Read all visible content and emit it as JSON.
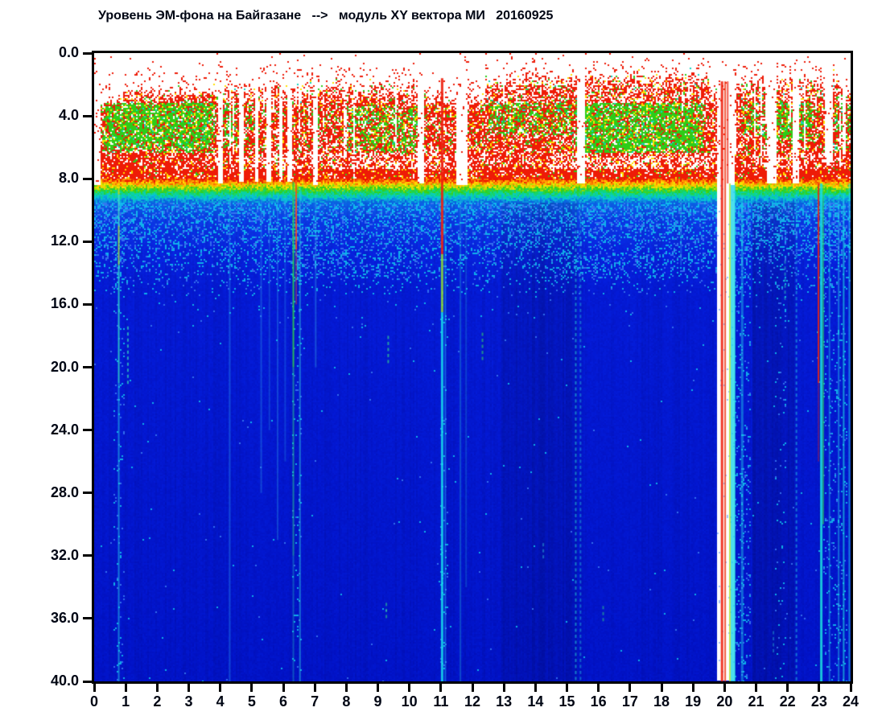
{
  "title": "Уровень ЭМ-фона на Байгазане   -->   модуль XY вектора МИ   20160925",
  "chart_data": {
    "type": "heatmap",
    "subtype": "spectrogram",
    "title": "Уровень ЭМ-фона на Байгазане --> модуль XY вектора МИ 20160925",
    "station": "Байгазане",
    "quantity": "модуль XY вектора МИ",
    "date": "20160925",
    "xlim": [
      0,
      24
    ],
    "ylim": [
      0,
      40
    ],
    "y_inverted": true,
    "grid": false,
    "legend": "none",
    "x_ticks": [
      "0",
      "1",
      "2",
      "3",
      "4",
      "5",
      "6",
      "7",
      "8",
      "9",
      "10",
      "11",
      "12",
      "13",
      "14",
      "15",
      "16",
      "17",
      "18",
      "19",
      "20",
      "21",
      "22",
      "23",
      "24"
    ],
    "y_ticks": [
      "0.0",
      "4.0",
      "8.0",
      "12.0",
      "16.0",
      "20.0",
      "24.0",
      "28.0",
      "32.0",
      "36.0",
      "40.0"
    ],
    "colormap": "jet (blue=low, cyan, green, yellow, red=high)",
    "intensity_bands_by_depth": [
      {
        "range": [
          0,
          2
        ],
        "level": "background/white with sparse high-intensity dots"
      },
      {
        "range": [
          2,
          8
        ],
        "level": "high (red) with medium (green) patches"
      },
      {
        "range": [
          8,
          9.5
        ],
        "level": "transition red-yellow-green-cyan"
      },
      {
        "range": [
          9.5,
          15.5
        ],
        "level": "low-medium (blue with cyan speckle)"
      },
      {
        "range": [
          15.5,
          40
        ],
        "level": "low (deep blue)"
      }
    ],
    "render": {
      "seed": 1337,
      "palette": {
        "red": "#ee1b07",
        "yellow": "#ffdf00",
        "green": "#2ecc18",
        "cyan": "#16d3c0",
        "white": "#ffffff",
        "speck1": "#12c8ee",
        "speck2": "#3a7bf2",
        "ltblue": "#9fc4ff"
      },
      "ramp_stops": [
        [
          0,
          "#ee1500"
        ],
        [
          0.16,
          "#ff9e00"
        ],
        [
          0.27,
          "#ffe400"
        ],
        [
          0.45,
          "#35d012"
        ],
        [
          0.62,
          "#0cd689"
        ],
        [
          0.78,
          "#08c6d6"
        ],
        [
          0.92,
          "#0a8ee0"
        ],
        [
          1,
          "#0b63de"
        ]
      ],
      "blue_stops": [
        [
          9.55,
          "#0b63de"
        ],
        [
          10.6,
          "#0b3ade"
        ],
        [
          12.6,
          "#0722d6"
        ],
        [
          15,
          "#041acd"
        ],
        [
          40,
          "#0113c0"
        ]
      ],
      "top_edge": [
        [
          0,
          0.9,
          2.6
        ],
        [
          0.9,
          3.9,
          1.9
        ],
        [
          3.9,
          8.2,
          1.6
        ],
        [
          8.2,
          10.5,
          1.85
        ],
        [
          10.5,
          12.4,
          2.35
        ],
        [
          12.4,
          13.2,
          1.4
        ],
        [
          13.2,
          19.5,
          1.05
        ],
        [
          19.5,
          20.35,
          1.9
        ],
        [
          20.35,
          20.9,
          1.6
        ],
        [
          20.9,
          23.3,
          1.3
        ],
        [
          23.3,
          23.7,
          1.15
        ],
        [
          23.7,
          24,
          2.0
        ]
      ],
      "white_band": [
        [
          0,
          3.5,
          0.12
        ],
        [
          3.5,
          4.5,
          0.32
        ],
        [
          4.5,
          9.5,
          0.52
        ],
        [
          9.5,
          12,
          0.42
        ],
        [
          12,
          14.5,
          0.3
        ],
        [
          14.5,
          19.5,
          0.62
        ],
        [
          19.5,
          20.3,
          0.25
        ],
        [
          20.3,
          21.4,
          0.35
        ],
        [
          21.4,
          23.5,
          0.42
        ],
        [
          23.5,
          24,
          0.2
        ]
      ],
      "green_patches": [
        [
          0.25,
          3.85,
          2.9,
          6.35,
          0.85
        ],
        [
          4.05,
          4.55,
          2.6,
          6.0,
          0.6
        ],
        [
          4.78,
          5.12,
          3.2,
          5.6,
          0.35
        ],
        [
          7.9,
          10.4,
          3.4,
          6.35,
          0.45
        ],
        [
          12.5,
          15.25,
          2.2,
          5.2,
          0.5
        ],
        [
          15.25,
          19.35,
          2.1,
          6.55,
          0.9
        ],
        [
          20.55,
          21.15,
          2.4,
          5.2,
          0.45
        ],
        [
          21.2,
          22.85,
          1.9,
          5.6,
          0.68
        ],
        [
          23.45,
          24,
          2.9,
          6.2,
          0.5
        ]
      ],
      "gaps": [
        [
          0,
          0.22,
          0,
          8.4
        ],
        [
          3.95,
          4.1,
          0,
          8.3
        ],
        [
          4.6,
          4.73,
          0,
          8.2
        ],
        [
          5.1,
          5.23,
          0,
          8.2
        ],
        [
          5.48,
          5.6,
          0,
          8.15
        ],
        [
          5.88,
          6.0,
          0,
          8.2
        ],
        [
          6.15,
          6.28,
          0,
          8.2
        ],
        [
          6.92,
          7.08,
          0,
          8.35
        ],
        [
          10.28,
          10.46,
          0,
          8.3
        ],
        [
          11.5,
          11.87,
          0,
          8.35
        ],
        [
          15.3,
          15.56,
          0,
          8.3
        ],
        [
          19.78,
          20.3,
          0,
          40
        ],
        [
          21.35,
          21.66,
          0,
          8.3
        ],
        [
          22.18,
          22.36,
          0,
          8.3
        ],
        [
          23.2,
          23.45,
          0,
          7.0
        ],
        [
          23.72,
          23.85,
          0,
          6.5
        ]
      ],
      "scratch": [
        [
          4.2,
          8.3,
          0.14
        ],
        [
          9.55,
          10.3,
          0.1
        ],
        [
          12.4,
          19.5,
          0.05
        ],
        [
          20.3,
          21.35,
          0.2
        ],
        [
          21.66,
          23.2,
          0.12
        ],
        [
          23.45,
          24,
          0.1
        ]
      ],
      "light_cols": [
        [
          0.6,
          0.95,
          0.25
        ],
        [
          6.3,
          6.6,
          0.25
        ],
        [
          11.0,
          11.25,
          0.3
        ],
        [
          20.3,
          20.85,
          0.5
        ],
        [
          21.6,
          21.95,
          0.2
        ],
        [
          23.15,
          23.55,
          0.4
        ],
        [
          23.55,
          23.9,
          0.3
        ]
      ],
      "dark_cols": [
        [
          12.9,
          15.3,
          0.88
        ],
        [
          20.9,
          22.2,
          0.86
        ]
      ],
      "mid_bump": [
        [
          0,
          1,
          0.06
        ],
        [
          6.4,
          10.3,
          0.1
        ],
        [
          14.6,
          19.3,
          0.12
        ]
      ],
      "events": [
        {
          "h": 0.78,
          "w": 2,
          "s": [
            [
              8.2,
              9,
              "#ffd400",
              0.7,
              0
            ],
            [
              9,
              11,
              "#49e0c8",
              0.75,
              0
            ],
            [
              11,
              13.5,
              "#a8e23c",
              0.8,
              0
            ],
            [
              13.5,
              21,
              "#2fd9c8",
              0.8,
              0
            ],
            [
              21,
              40,
              "#25c8e6",
              0.55,
              0
            ]
          ]
        },
        {
          "h": 1.07,
          "w": 2,
          "s": [
            [
              17.4,
              21,
              "#35e0b8",
              0.7,
              1
            ]
          ]
        },
        {
          "h": 4.3,
          "w": 2,
          "s": [
            [
              9,
              40,
              "#38bdf0",
              0.3,
              0
            ]
          ]
        },
        {
          "h": 5.3,
          "w": 2,
          "s": [
            [
              9,
              28,
              "#38bdf0",
              0.28,
              0
            ]
          ]
        },
        {
          "h": 5.56,
          "w": 2,
          "s": [
            [
              9,
              24,
              "#38bdf0",
              0.22,
              0
            ]
          ]
        },
        {
          "h": 5.82,
          "w": 2,
          "s": [
            [
              9,
              31,
              "#38bdf0",
              0.28,
              0
            ]
          ]
        },
        {
          "h": 6.06,
          "w": 2,
          "s": [
            [
              9,
              26,
              "#38bdf0",
              0.22,
              0
            ]
          ]
        },
        {
          "h": 6.32,
          "w": 2,
          "s": [
            [
              8.2,
              20,
              "#2ecc4e",
              0.88,
              0
            ],
            [
              20,
              32,
              "#29c98e",
              0.55,
              0
            ],
            [
              32,
              40,
              "#27c3c3",
              0.35,
              0
            ]
          ]
        },
        {
          "h": 6.41,
          "w": 2,
          "s": [
            [
              8.2,
              12.5,
              "#ff4a12",
              0.88,
              0
            ],
            [
              12.5,
              16,
              "#ff4a12",
              0.4,
              0
            ]
          ]
        },
        {
          "h": 6.53,
          "w": 2,
          "s": [
            [
              8.5,
              40,
              "#2fc9e2",
              0.5,
              0
            ]
          ]
        },
        {
          "h": 7.03,
          "w": 2,
          "s": [
            [
              9,
              20,
              "#45c9ef",
              0.3,
              0
            ]
          ]
        },
        {
          "h": 9.27,
          "w": 2,
          "s": [
            [
              35.0,
              35.9,
              "#35dd88",
              0.55,
              1
            ]
          ]
        },
        {
          "h": 9.33,
          "w": 2,
          "s": [
            [
              18,
              19.6,
              "#37e08c",
              0.65,
              1
            ]
          ]
        },
        {
          "h": 11.04,
          "w": 3,
          "s": [
            [
              1.6,
              12.8,
              "#ee2310",
              0.92,
              0
            ],
            [
              12.8,
              16.5,
              "#8ede35",
              0.85,
              0
            ],
            [
              16.5,
              40,
              "#19dcec",
              0.85,
              0
            ]
          ]
        },
        {
          "h": 11.14,
          "w": 2,
          "s": [
            [
              9,
              40,
              "#27cdec",
              0.4,
              0
            ]
          ]
        },
        {
          "h": 11.62,
          "w": 2,
          "s": [
            [
              9,
              40,
              "#2cc6e6",
              0.3,
              0
            ]
          ]
        },
        {
          "h": 11.8,
          "w": 2,
          "s": [
            [
              9,
              34,
              "#2cc6e6",
              0.22,
              0
            ]
          ]
        },
        {
          "h": 12.32,
          "w": 2,
          "s": [
            [
              17.8,
              19.6,
              "#35dd66",
              0.6,
              1
            ]
          ]
        },
        {
          "h": 14.25,
          "w": 2,
          "s": [
            [
              31.2,
              32,
              "#35c8e0",
              0.45,
              1
            ]
          ]
        },
        {
          "h": 15.28,
          "w": 2,
          "s": [
            [
              8.6,
              40,
              "#26d2e2",
              0.55,
              1
            ]
          ]
        },
        {
          "h": 15.43,
          "w": 2,
          "s": [
            [
              8.6,
              40,
              "#26d2e2",
              0.42,
              1
            ]
          ]
        },
        {
          "h": 16.15,
          "w": 2,
          "s": [
            [
              35.2,
              36.1,
              "#35dd88",
              0.5,
              1
            ]
          ]
        },
        {
          "h": 18.62,
          "w": 2,
          "s": [
            [
              9,
              13.5,
              "#35c9e8",
              0.3,
              0
            ]
          ]
        },
        {
          "h": 19.92,
          "w": 3,
          "s": [
            [
              1.8,
              40,
              "#ee2310",
              0.9,
              0
            ]
          ]
        },
        {
          "h": 20.02,
          "w": 2,
          "s": [
            [
              1.8,
              40,
              "#f03512",
              0.82,
              0
            ]
          ]
        },
        {
          "h": 20.1,
          "w": 2,
          "s": [
            [
              1.8,
              8.3,
              "#ee2310",
              0.75,
              0
            ]
          ]
        },
        {
          "h": 20.17,
          "w": 2,
          "s": [
            [
              8.3,
              40,
              "#b5e028",
              0.8,
              0
            ]
          ]
        },
        {
          "h": 20.27,
          "w": 6,
          "s": [
            [
              8.4,
              40,
              "#18d6e8",
              0.78,
              0
            ]
          ]
        },
        {
          "h": 20.56,
          "w": 3,
          "s": [
            [
              9,
              40,
              "#22cfe8",
              0.45,
              0
            ]
          ]
        },
        {
          "h": 21.55,
          "w": 2,
          "s": [
            [
              36.8,
              38.3,
              "#30c8e0",
              0.4,
              1
            ]
          ]
        },
        {
          "h": 21.92,
          "w": 2,
          "s": [
            [
              13.2,
              15.8,
              "#30d8c0",
              0.5,
              1
            ]
          ]
        },
        {
          "h": 22.28,
          "w": 2,
          "s": [
            [
              9,
              40,
              "#28d2e6",
              0.5,
              1
            ]
          ]
        },
        {
          "h": 22.98,
          "w": 2,
          "s": [
            [
              8.3,
              21,
              "#ee2310",
              0.88,
              0
            ],
            [
              21,
              26,
              "#ee2310",
              0.35,
              0
            ]
          ]
        },
        {
          "h": 23.07,
          "w": 3,
          "s": [
            [
              8.3,
              40,
              "#1bdce0",
              0.88,
              0
            ]
          ]
        },
        {
          "h": 23.13,
          "w": 2,
          "s": [
            [
              8.4,
              30,
              "#32d455",
              0.6,
              0
            ]
          ]
        },
        {
          "h": 23.33,
          "w": 2,
          "s": [
            [
              9,
              40,
              "#2bcce8",
              0.4,
              0
            ]
          ]
        },
        {
          "h": 23.62,
          "w": 2,
          "s": [
            [
              9,
              40,
              "#2bcce8",
              0.45,
              0
            ]
          ]
        },
        {
          "h": 23.78,
          "w": 2,
          "s": [
            [
              9,
              40,
              "#1fd4ea",
              0.65,
              0
            ]
          ]
        },
        {
          "h": 23.96,
          "w": 2,
          "s": [
            [
              8.3,
              40,
              "#25cfe8",
              0.55,
              0
            ]
          ]
        }
      ]
    }
  }
}
